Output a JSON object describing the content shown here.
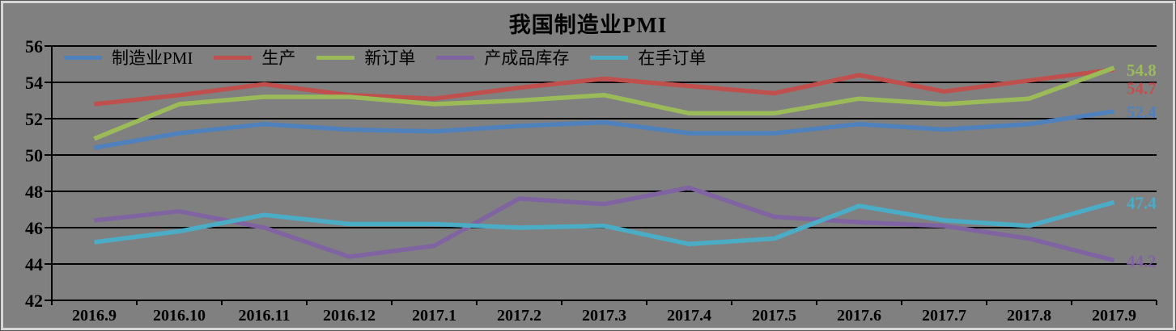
{
  "chart": {
    "background_color": "#808080",
    "gridline_color": "#000000",
    "text_color": "#000000"
  },
  "chart_data": {
    "type": "line",
    "title": "我国制造业PMI",
    "xlabel": "",
    "ylabel": "",
    "ylim": [
      42,
      56
    ],
    "y_ticks": [
      56,
      54,
      52,
      50,
      48,
      46,
      44,
      42
    ],
    "grid": true,
    "legend_position": "top-inside-left",
    "categories": [
      "2016.9",
      "2016.10",
      "2016.11",
      "2016.12",
      "2017.1",
      "2017.2",
      "2017.3",
      "2017.4",
      "2017.5",
      "2017.6",
      "2017.7",
      "2017.8",
      "2017.9"
    ],
    "series": [
      {
        "name": "制造业PMI",
        "color": "#4F81BD",
        "values": [
          50.4,
          51.2,
          51.7,
          51.4,
          51.3,
          51.6,
          51.8,
          51.2,
          51.2,
          51.7,
          51.4,
          51.7,
          52.4
        ],
        "end_label": "52.4"
      },
      {
        "name": "生产",
        "color": "#C0504D",
        "values": [
          52.8,
          53.3,
          53.9,
          53.3,
          53.1,
          53.7,
          54.2,
          53.8,
          53.4,
          54.4,
          53.5,
          54.1,
          54.7
        ],
        "end_label": "54.7"
      },
      {
        "name": "新订单",
        "color": "#9BBB59",
        "values": [
          50.9,
          52.8,
          53.2,
          53.2,
          52.8,
          53.0,
          53.3,
          52.3,
          52.3,
          53.1,
          52.8,
          53.1,
          54.8
        ],
        "end_label": "54.8"
      },
      {
        "name": "产成品库存",
        "color": "#8064A2",
        "values": [
          46.4,
          46.9,
          46.0,
          44.4,
          45.0,
          47.6,
          47.3,
          48.2,
          46.6,
          46.3,
          46.1,
          45.4,
          44.2
        ],
        "end_label": "44.2"
      },
      {
        "name": "在手订单",
        "color": "#4BACC6",
        "values": [
          45.2,
          45.8,
          46.7,
          46.2,
          46.2,
          46.0,
          46.1,
          45.1,
          45.4,
          47.2,
          46.4,
          46.1,
          47.4
        ],
        "end_label": "47.4"
      }
    ]
  }
}
